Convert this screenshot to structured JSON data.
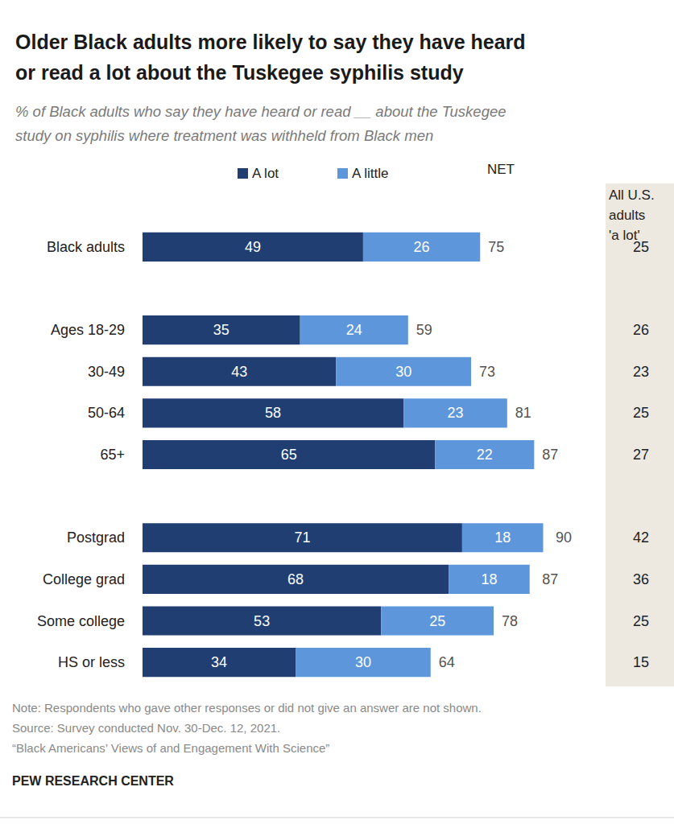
{
  "chart_data": {
    "type": "bar",
    "orientation": "horizontal",
    "stacked": true,
    "data_labels": true,
    "tick_labels": "y",
    "grid": false,
    "title": "Older Black adults more likely to say they have heard\nor read a lot about the Tuskegee syphilis study",
    "subtitle": "% of Black adults who say they have heard or read __ about the Tuskegee\nstudy on syphilis where treatment was withheld from Black men",
    "categories": [
      "Black adults",
      null,
      "Ages 18-29",
      "30-49",
      "50-64",
      "65+",
      null,
      "Postgrad",
      "College grad",
      "Some college",
      "HS or less"
    ],
    "series": [
      {
        "name": "A lot",
        "color": "#213e73",
        "values": [
          49,
          null,
          35,
          43,
          58,
          65,
          null,
          71,
          68,
          53,
          34
        ]
      },
      {
        "name": "A little",
        "color": "#5e96dc",
        "values": [
          26,
          null,
          24,
          30,
          23,
          22,
          null,
          18,
          18,
          25,
          30
        ]
      }
    ],
    "net": {
      "label": "NET",
      "values": [
        75,
        null,
        59,
        73,
        81,
        87,
        null,
        90,
        87,
        78,
        64
      ]
    },
    "us_adults": {
      "label": "All U.S.\nadults\n'a lot'",
      "values": [
        25,
        null,
        26,
        23,
        25,
        27,
        null,
        42,
        36,
        25,
        15
      ]
    },
    "xlim": [
      0,
      100
    ],
    "notes": [
      "Note: Respondents who gave other responses or did not give an answer are not shown.",
      "Source: Survey conducted Nov. 30-Dec. 12, 2021.",
      "“Black Americans’ Views of and Engagement With Science”"
    ],
    "credit": "PEW RESEARCH CENTER"
  }
}
